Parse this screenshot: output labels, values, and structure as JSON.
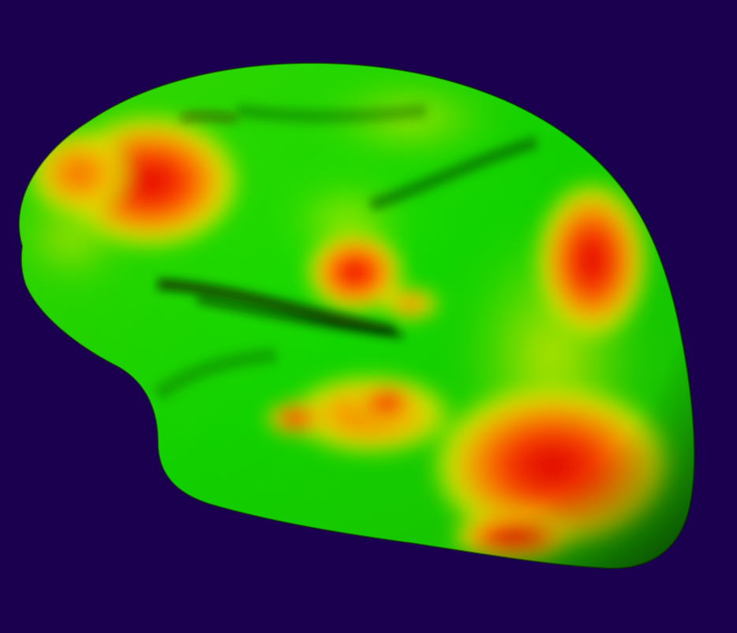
{
  "scene": {
    "background_color": "#1c0050",
    "surface_base_color": "#22d400",
    "colormap": [
      "#00dd00",
      "#7fe800",
      "#e6f000",
      "#ff9a00",
      "#ff3000",
      "#e00000"
    ],
    "subject": "brain-hemisphere-surface-heatmap"
  }
}
